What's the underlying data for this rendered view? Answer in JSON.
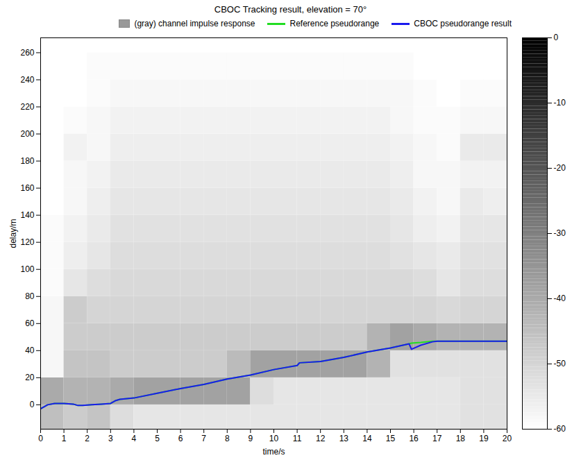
{
  "chart_data": {
    "type": "heatmap",
    "title": "CBOC Tracking result, elevation = 70°",
    "x_label": "time/s",
    "y_label": "delay/m",
    "xlim": [
      0,
      20
    ],
    "xticks": [
      0,
      1,
      2,
      3,
      4,
      5,
      6,
      7,
      8,
      9,
      10,
      11,
      12,
      13,
      14,
      15,
      16,
      17,
      18,
      19,
      20
    ],
    "ylim": [
      -18,
      271
    ],
    "yticks": [
      0,
      20,
      40,
      60,
      80,
      100,
      120,
      140,
      160,
      180,
      200,
      220,
      240,
      260
    ],
    "legend": "top",
    "x": [
      0,
      0.3,
      0.6,
      1,
      1.4,
      1.6,
      1.8,
      2.2,
      2.6,
      3,
      3.2,
      3.4,
      4,
      5,
      6,
      7,
      8,
      9,
      10,
      11,
      11.1,
      12,
      13,
      14,
      15,
      15.8,
      15.9,
      16.3,
      16.8,
      17,
      18,
      19,
      20
    ],
    "series": [
      {
        "name": "Reference pseudorange",
        "color": "#22dd22",
        "type": "line",
        "values": [
          -3,
          0,
          1,
          1,
          0.5,
          -0.5,
          -0.5,
          0,
          0.5,
          1,
          3,
          4,
          5,
          8.5,
          12,
          15,
          19,
          22,
          26,
          29,
          31,
          32,
          35,
          39,
          42,
          45,
          45.5,
          46,
          47,
          47,
          47,
          47,
          47
        ]
      },
      {
        "name": "CBOC pseudorange result",
        "color": "#1a1aee",
        "type": "line",
        "values": [
          -3,
          0,
          1,
          1,
          0.5,
          -0.5,
          -0.5,
          0,
          0.5,
          1,
          3,
          4,
          5,
          8.5,
          12,
          15,
          19,
          22,
          26,
          29,
          31,
          32,
          35,
          39,
          42,
          45,
          41,
          44,
          46.5,
          47,
          47,
          47,
          47
        ]
      }
    ],
    "cells": {
      "name": "(gray) channel impulse response",
      "color": "#999999",
      "time_edges": [
        0,
        1,
        2,
        3,
        4,
        5,
        6,
        7,
        8,
        9,
        10,
        11,
        12,
        13,
        14,
        15,
        16,
        17,
        18,
        19,
        20
      ],
      "delay_edges": [
        -20,
        0,
        20,
        40,
        60,
        80,
        100,
        120,
        140,
        160,
        180,
        200,
        220,
        240,
        260,
        280
      ],
      "values": [
        [
          -45,
          -48,
          -46,
          -52,
          -54,
          -54,
          -54,
          -54,
          -54,
          -54,
          -54,
          -54,
          -54,
          -54,
          -54,
          -54,
          -54,
          -54,
          -53,
          -53
        ],
        [
          -40,
          -42,
          -42,
          -40,
          -38,
          -38,
          -38,
          -38,
          -38,
          -52,
          -54,
          -54,
          -54,
          -54,
          -54,
          -54,
          -54,
          -54,
          -53,
          -53
        ],
        [
          -58,
          -46,
          -46,
          -48,
          -48,
          -48,
          -48,
          -48,
          -44,
          -38,
          -38,
          -38,
          -38,
          -38,
          -42,
          -53,
          -53,
          -53,
          -53,
          -53
        ],
        [
          -58,
          -48,
          -48,
          -48,
          -48,
          -48,
          -48,
          -48,
          -48,
          -48,
          -48,
          -48,
          -48,
          -48,
          -42,
          -38,
          -40,
          -42,
          -42,
          -42
        ],
        [
          -58,
          -48,
          -50,
          -50,
          -50,
          -50,
          -50,
          -50,
          -50,
          -50,
          -50,
          -50,
          -50,
          -50,
          -50,
          -50,
          -50,
          -51,
          -50,
          -50
        ],
        [
          -59,
          -54,
          -52,
          -51,
          -51,
          -51,
          -51,
          -51,
          -51,
          -51,
          -51,
          -51,
          -51,
          -51,
          -51,
          -51,
          -52,
          -54,
          -52,
          -52
        ],
        [
          -59,
          -56,
          -54,
          -52,
          -52,
          -52,
          -52,
          -52,
          -52,
          -52,
          -52,
          -52,
          -52,
          -52,
          -52,
          -53,
          -54,
          -55,
          -53,
          -53
        ],
        [
          -59,
          -57,
          -55,
          -53,
          -53,
          -53,
          -53,
          -53,
          -53,
          -53,
          -53,
          -53,
          -53,
          -53,
          -53,
          -54,
          -56,
          -57,
          -54,
          -54
        ],
        [
          -60,
          -58,
          -56,
          -54,
          -54,
          -54,
          -54,
          -54,
          -54,
          -54,
          -54,
          -54,
          -54,
          -54,
          -54,
          -55,
          -57,
          -58,
          -55,
          -56
        ],
        [
          -60,
          -58,
          -57,
          -55,
          -55,
          -55,
          -55,
          -55,
          -55,
          -55,
          -55,
          -55,
          -55,
          -55,
          -55,
          -56,
          -58,
          -58,
          -57,
          -57
        ],
        [
          -60,
          -57,
          -58,
          -56,
          -56,
          -56,
          -56,
          -56,
          -56,
          -56,
          -56,
          -56,
          -56,
          -56,
          -56,
          -57,
          -58,
          -59,
          -55,
          -55
        ],
        [
          -60,
          -59,
          -58,
          -57,
          -57,
          -57,
          -57,
          -57,
          -57,
          -57,
          -57,
          -57,
          -57,
          -57,
          -57,
          -58,
          -59,
          -59,
          -58,
          -58
        ],
        [
          -60,
          -60,
          -59,
          -58,
          -58,
          -58,
          -58,
          -58,
          -58,
          -58,
          -58,
          -58,
          -58,
          -58,
          -58,
          -58,
          -59,
          -60,
          -59,
          -59
        ],
        [
          -60,
          -60,
          -59,
          -59,
          -59,
          -59,
          -59,
          -59,
          -59,
          -59,
          -59,
          -59,
          -59,
          -59,
          -59,
          -59,
          -60,
          -60,
          -60,
          -60
        ],
        [
          -60,
          -60,
          -60,
          -60,
          -60,
          -60,
          -60,
          -60,
          -60,
          -60,
          -60,
          -60,
          -60,
          -60,
          -60,
          -60,
          -60,
          -60,
          -60,
          -60
        ]
      ],
      "color_range": [
        -60,
        0
      ],
      "color_ticks": [
        0,
        -10,
        -20,
        -30,
        -40,
        -50,
        -60
      ]
    }
  }
}
